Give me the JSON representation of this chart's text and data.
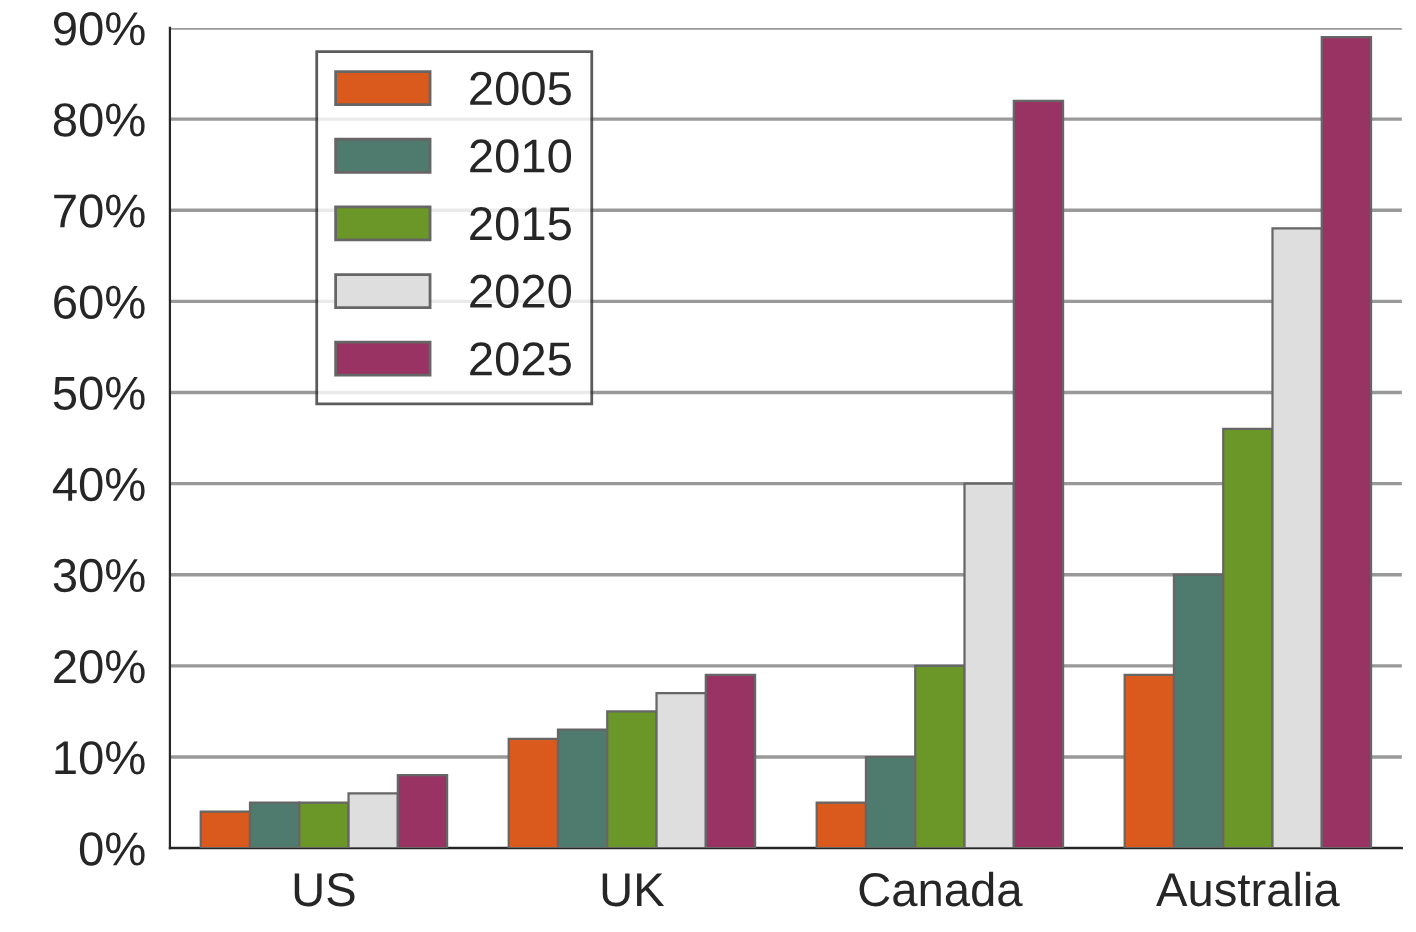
{
  "chart_data": {
    "type": "bar",
    "categories": [
      "US",
      "UK",
      "Canada",
      "Australia"
    ],
    "series": [
      {
        "name": "2005",
        "color": "#d95a1c",
        "values": [
          4,
          12,
          5,
          19
        ]
      },
      {
        "name": "2010",
        "color": "#4e7b6e",
        "values": [
          5,
          13,
          10,
          30
        ]
      },
      {
        "name": "2015",
        "color": "#6b9628",
        "values": [
          5,
          15,
          20,
          46
        ]
      },
      {
        "name": "2020",
        "color": "#dedede",
        "values": [
          6,
          17,
          40,
          68
        ]
      },
      {
        "name": "2025",
        "color": "#983363",
        "values": [
          8,
          19,
          82,
          89
        ]
      }
    ],
    "ylim": [
      0,
      90
    ],
    "yticks": [
      {
        "value": 0,
        "label": "0%"
      },
      {
        "value": 10,
        "label": "10%"
      },
      {
        "value": 20,
        "label": "20%"
      },
      {
        "value": 30,
        "label": "30%"
      },
      {
        "value": 40,
        "label": "40%"
      },
      {
        "value": 50,
        "label": "50%"
      },
      {
        "value": 60,
        "label": "60%"
      },
      {
        "value": 70,
        "label": "70%"
      },
      {
        "value": 80,
        "label": "80%"
      },
      {
        "value": 90,
        "label": "90%"
      }
    ],
    "grid": "y",
    "legend": "top left"
  }
}
